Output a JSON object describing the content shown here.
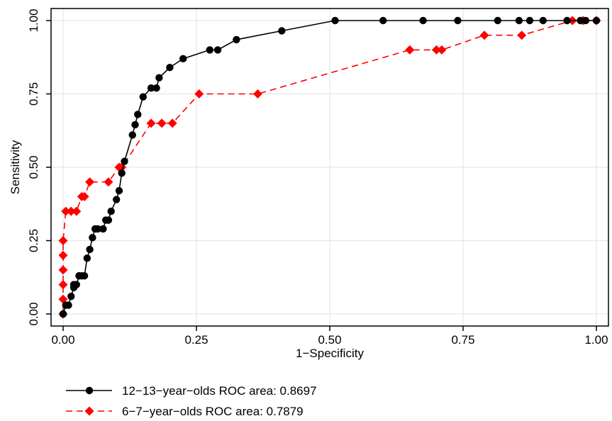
{
  "chart_data": {
    "type": "line",
    "title": "",
    "xlabel": "1−Specificity",
    "ylabel": "Sensitivity",
    "xlim": [
      0,
      1
    ],
    "ylim": [
      0,
      1
    ],
    "x_ticks": [
      0,
      0.25,
      0.5,
      0.75,
      1
    ],
    "y_ticks": [
      0,
      0.25,
      0.5,
      0.75,
      1
    ],
    "x_tick_labels": [
      "0.00",
      "0.25",
      "0.50",
      "0.75",
      "1.00"
    ],
    "y_tick_labels": [
      "0.00",
      "0.25",
      "0.50",
      "0.75",
      "1.00"
    ],
    "grid": true,
    "legend_position": "bottom",
    "series": [
      {
        "name": "12−13−year−olds ROC area: 0.8697",
        "color": "#000000",
        "line_style": "solid",
        "marker": "circle",
        "x": [
          0,
          0,
          0.005,
          0.01,
          0.015,
          0.02,
          0.02,
          0.025,
          0.03,
          0.03,
          0.035,
          0.04,
          0.045,
          0.05,
          0.055,
          0.06,
          0.065,
          0.075,
          0.08,
          0.085,
          0.09,
          0.1,
          0.105,
          0.11,
          0.115,
          0.13,
          0.135,
          0.14,
          0.15,
          0.165,
          0.175,
          0.18,
          0.2,
          0.225,
          0.275,
          0.29,
          0.325,
          0.41,
          0.51,
          0.6,
          0.675,
          0.74,
          0.815,
          0.855,
          0.875,
          0.9,
          0.945,
          0.97,
          0.98,
          1
        ],
        "y": [
          0,
          0,
          0.03,
          0.03,
          0.06,
          0.09,
          0.1,
          0.1,
          0.13,
          0.13,
          0.13,
          0.13,
          0.19,
          0.22,
          0.26,
          0.29,
          0.29,
          0.29,
          0.32,
          0.32,
          0.35,
          0.39,
          0.42,
          0.48,
          0.52,
          0.61,
          0.645,
          0.68,
          0.74,
          0.77,
          0.77,
          0.805,
          0.84,
          0.87,
          0.9,
          0.9,
          0.935,
          0.965,
          1,
          1,
          1,
          1,
          1,
          1,
          1,
          1,
          1,
          1,
          1,
          1
        ]
      },
      {
        "name": "6−7−year−olds ROC area: 0.7879",
        "color": "#ff0000",
        "line_style": "dashed",
        "marker": "diamond",
        "x": [
          0,
          0,
          0,
          0,
          0,
          0,
          0.005,
          0.015,
          0.025,
          0.035,
          0.04,
          0.05,
          0.085,
          0.105,
          0.11,
          0.165,
          0.185,
          0.205,
          0.255,
          0.365,
          0.65,
          0.7,
          0.71,
          0.79,
          0.86,
          0.955,
          0.975,
          1
        ],
        "y": [
          0,
          0.05,
          0.1,
          0.15,
          0.2,
          0.25,
          0.35,
          0.35,
          0.35,
          0.4,
          0.4,
          0.45,
          0.45,
          0.5,
          0.5,
          0.65,
          0.65,
          0.65,
          0.75,
          0.75,
          0.9,
          0.9,
          0.9,
          0.95,
          0.95,
          1,
          1,
          1
        ]
      }
    ]
  }
}
